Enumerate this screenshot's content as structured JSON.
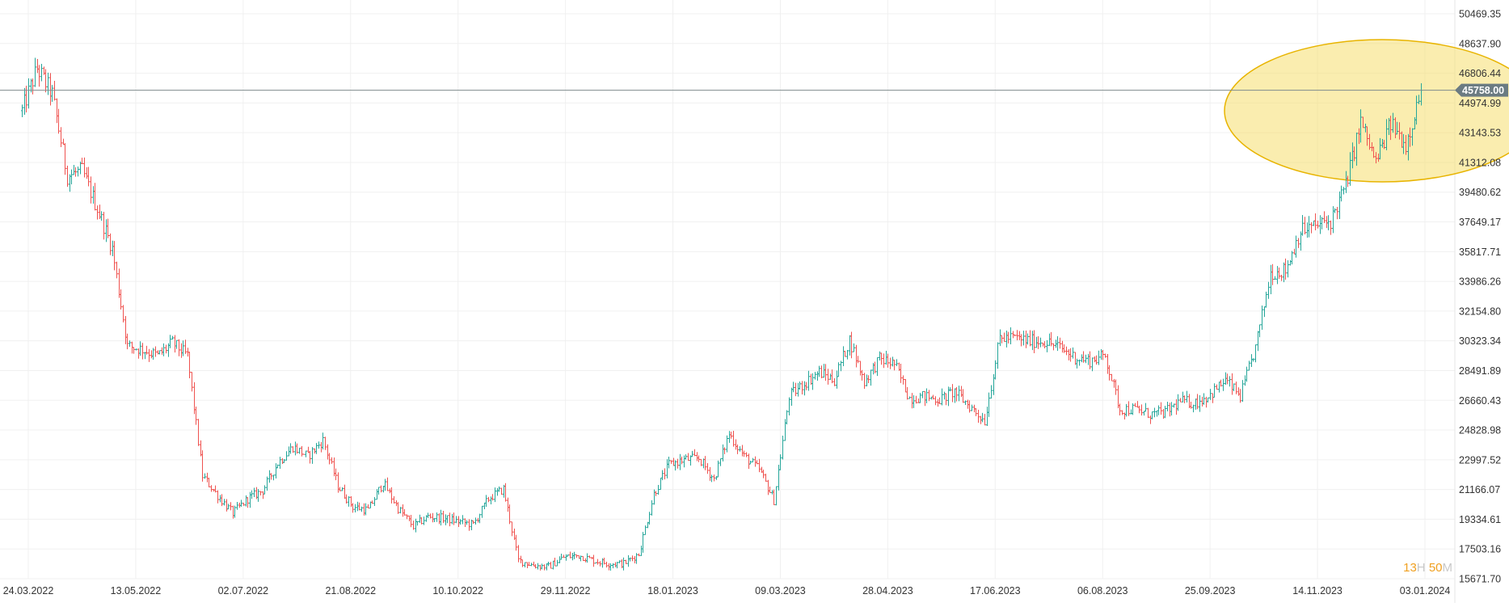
{
  "chart_data": {
    "type": "ohlc",
    "y_axis": {
      "side": "right",
      "ylim": [
        15671.7,
        50469.35
      ],
      "ticks": [
        "50469.35",
        "48637.90",
        "46806.44",
        "44974.99",
        "43143.53",
        "41312.08",
        "39480.62",
        "37649.17",
        "35817.71",
        "33986.26",
        "32154.80",
        "30323.34",
        "28491.89",
        "26660.43",
        "24828.98",
        "22997.52",
        "21166.07",
        "19334.61",
        "17503.16",
        "15671.70"
      ]
    },
    "x_axis": {
      "ticks": [
        "24.03.2022",
        "13.05.2022",
        "02.07.2022",
        "21.08.2022",
        "10.10.2022",
        "29.11.2022",
        "18.01.2023",
        "09.03.2023",
        "28.04.2023",
        "17.06.2023",
        "06.08.2023",
        "25.09.2023",
        "14.11.2023",
        "03.01.2024"
      ]
    },
    "grid": true,
    "current_price": {
      "label": "45758.00",
      "value": 45758.0
    },
    "highlight": {
      "shape": "ellipse",
      "color": "#f6de6e",
      "region": "last ~6 weeks, ~40500-49100"
    },
    "colors": {
      "up": "#26a69a",
      "down": "#ef5350",
      "line": "#7f8c8d",
      "tag": "#6b7b82",
      "grid": "#f0f0f0"
    },
    "path_points": [
      {
        "date": "2022-03-21",
        "close": 44500
      },
      {
        "date": "2022-03-28",
        "close": 47100
      },
      {
        "date": "2022-04-04",
        "close": 45500
      },
      {
        "date": "2022-04-11",
        "close": 40500
      },
      {
        "date": "2022-04-18",
        "close": 40800
      },
      {
        "date": "2022-04-25",
        "close": 38500
      },
      {
        "date": "2022-05-02",
        "close": 36000
      },
      {
        "date": "2022-05-09",
        "close": 30000
      },
      {
        "date": "2022-05-16",
        "close": 29800
      },
      {
        "date": "2022-05-23",
        "close": 29400
      },
      {
        "date": "2022-05-30",
        "close": 30200
      },
      {
        "date": "2022-06-06",
        "close": 29400
      },
      {
        "date": "2022-06-13",
        "close": 22000
      },
      {
        "date": "2022-06-20",
        "close": 20800
      },
      {
        "date": "2022-06-27",
        "close": 19700
      },
      {
        "date": "2022-07-04",
        "close": 20600
      },
      {
        "date": "2022-07-11",
        "close": 21100
      },
      {
        "date": "2022-07-18",
        "close": 22800
      },
      {
        "date": "2022-07-25",
        "close": 23800
      },
      {
        "date": "2022-08-01",
        "close": 23200
      },
      {
        "date": "2022-08-08",
        "close": 24200
      },
      {
        "date": "2022-08-15",
        "close": 21400
      },
      {
        "date": "2022-08-22",
        "close": 20100
      },
      {
        "date": "2022-08-29",
        "close": 19900
      },
      {
        "date": "2022-09-05",
        "close": 21600
      },
      {
        "date": "2022-09-12",
        "close": 20000
      },
      {
        "date": "2022-09-19",
        "close": 18900
      },
      {
        "date": "2022-09-26",
        "close": 19500
      },
      {
        "date": "2022-10-03",
        "close": 19400
      },
      {
        "date": "2022-10-10",
        "close": 19200
      },
      {
        "date": "2022-10-17",
        "close": 19000
      },
      {
        "date": "2022-10-24",
        "close": 20600
      },
      {
        "date": "2022-10-31",
        "close": 21200
      },
      {
        "date": "2022-11-07",
        "close": 16800
      },
      {
        "date": "2022-11-14",
        "close": 16500
      },
      {
        "date": "2022-11-21",
        "close": 16400
      },
      {
        "date": "2022-11-28",
        "close": 17000
      },
      {
        "date": "2022-12-05",
        "close": 17100
      },
      {
        "date": "2022-12-12",
        "close": 16800
      },
      {
        "date": "2022-12-19",
        "close": 16600
      },
      {
        "date": "2022-12-26",
        "close": 16600
      },
      {
        "date": "2023-01-02",
        "close": 17200
      },
      {
        "date": "2023-01-09",
        "close": 20900
      },
      {
        "date": "2023-01-16",
        "close": 22700
      },
      {
        "date": "2023-01-23",
        "close": 23000
      },
      {
        "date": "2023-01-30",
        "close": 23100
      },
      {
        "date": "2023-02-06",
        "close": 21800
      },
      {
        "date": "2023-02-13",
        "close": 24600
      },
      {
        "date": "2023-02-20",
        "close": 23200
      },
      {
        "date": "2023-02-27",
        "close": 22400
      },
      {
        "date": "2023-03-06",
        "close": 20500
      },
      {
        "date": "2023-03-13",
        "close": 26900
      },
      {
        "date": "2023-03-20",
        "close": 27700
      },
      {
        "date": "2023-03-27",
        "close": 28400
      },
      {
        "date": "2023-04-03",
        "close": 27900
      },
      {
        "date": "2023-04-10",
        "close": 30400
      },
      {
        "date": "2023-04-17",
        "close": 27800
      },
      {
        "date": "2023-04-24",
        "close": 29200
      },
      {
        "date": "2023-05-01",
        "close": 28900
      },
      {
        "date": "2023-05-08",
        "close": 26800
      },
      {
        "date": "2023-05-15",
        "close": 26900
      },
      {
        "date": "2023-05-22",
        "close": 26700
      },
      {
        "date": "2023-05-29",
        "close": 27200
      },
      {
        "date": "2023-06-05",
        "close": 26300
      },
      {
        "date": "2023-06-12",
        "close": 25400
      },
      {
        "date": "2023-06-19",
        "close": 30500
      },
      {
        "date": "2023-06-26",
        "close": 30500
      },
      {
        "date": "2023-07-03",
        "close": 30300
      },
      {
        "date": "2023-07-10",
        "close": 30300
      },
      {
        "date": "2023-07-17",
        "close": 29900
      },
      {
        "date": "2023-07-24",
        "close": 29300
      },
      {
        "date": "2023-07-31",
        "close": 29100
      },
      {
        "date": "2023-08-07",
        "close": 29400
      },
      {
        "date": "2023-08-14",
        "close": 26100
      },
      {
        "date": "2023-08-21",
        "close": 26100
      },
      {
        "date": "2023-08-28",
        "close": 25800
      },
      {
        "date": "2023-09-04",
        "close": 25900
      },
      {
        "date": "2023-09-11",
        "close": 26600
      },
      {
        "date": "2023-09-18",
        "close": 26500
      },
      {
        "date": "2023-09-25",
        "close": 27000
      },
      {
        "date": "2023-10-02",
        "close": 27900
      },
      {
        "date": "2023-10-09",
        "close": 26900
      },
      {
        "date": "2023-10-16",
        "close": 29900
      },
      {
        "date": "2023-10-23",
        "close": 34500
      },
      {
        "date": "2023-10-30",
        "close": 34700
      },
      {
        "date": "2023-11-06",
        "close": 37100
      },
      {
        "date": "2023-11-13",
        "close": 37400
      },
      {
        "date": "2023-11-20",
        "close": 37700
      },
      {
        "date": "2023-11-27",
        "close": 39900
      },
      {
        "date": "2023-12-04",
        "close": 43800
      },
      {
        "date": "2023-12-11",
        "close": 41300
      },
      {
        "date": "2023-12-18",
        "close": 43700
      },
      {
        "date": "2023-12-25",
        "close": 42400
      },
      {
        "date": "2024-01-01",
        "close": 45758
      }
    ]
  },
  "timer": {
    "hours": "13",
    "hours_unit": "H",
    "minutes": "50",
    "minutes_unit": "M"
  }
}
